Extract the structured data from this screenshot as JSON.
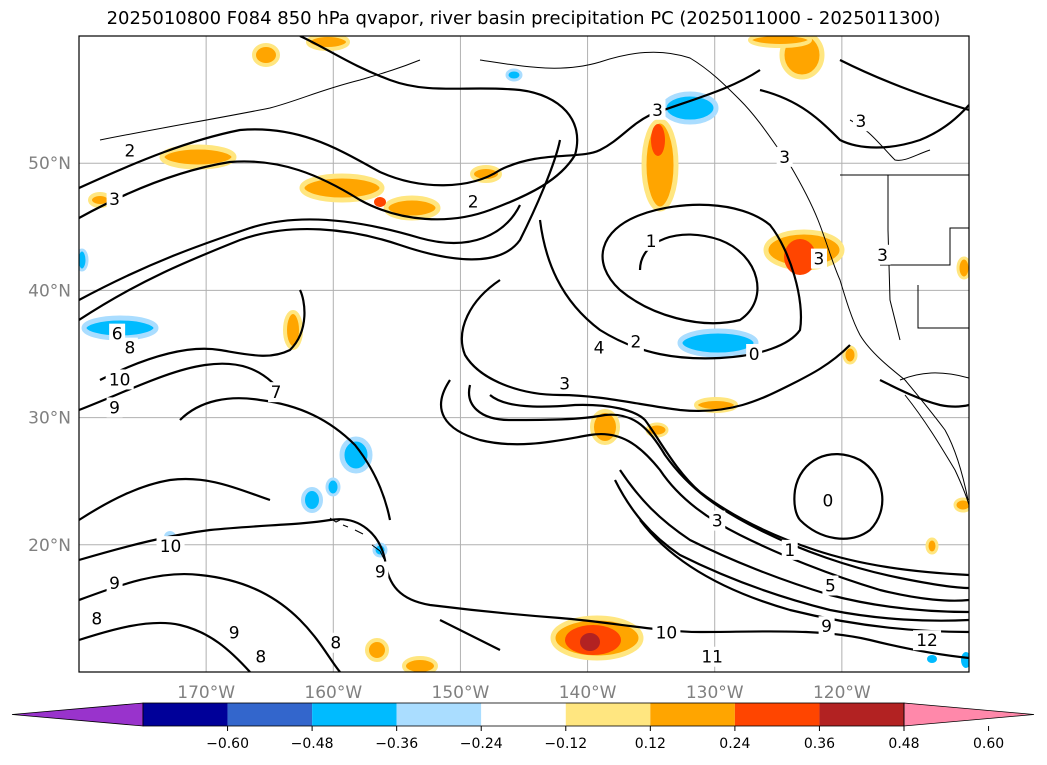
{
  "title": "2025010800 F084 850 hPa qvapor, river basin precipitation PC (2025011000 - 2025011300)",
  "map": {
    "projection": "lat-lon",
    "lon_range": [
      -180,
      -110
    ],
    "lat_range": [
      10,
      60
    ],
    "gridlines": true,
    "lat_ticks": [
      {
        "label": "50°N",
        "lat": 50
      },
      {
        "label": "40°N",
        "lat": 40
      },
      {
        "label": "30°N",
        "lat": 30
      },
      {
        "label": "20°N",
        "lat": 20
      }
    ],
    "lon_ticks": [
      {
        "label": "170°W",
        "lon": -170
      },
      {
        "label": "160°W",
        "lon": -160
      },
      {
        "label": "150°W",
        "lon": -150
      },
      {
        "label": "140°W",
        "lon": -140
      },
      {
        "label": "130°W",
        "lon": -130
      },
      {
        "label": "120°W",
        "lon": -120
      }
    ],
    "contour_labels": [
      {
        "text": "2",
        "lon": -176,
        "lat": 51
      },
      {
        "text": "3",
        "lon": -177.2,
        "lat": 47.2
      },
      {
        "text": "2",
        "lon": -149,
        "lat": 47
      },
      {
        "text": "3",
        "lon": -134.5,
        "lat": 54.2
      },
      {
        "text": "3",
        "lon": -118.5,
        "lat": 53.3
      },
      {
        "text": "3",
        "lon": -124.5,
        "lat": 50.5
      },
      {
        "text": "1",
        "lon": -135,
        "lat": 43.9
      },
      {
        "text": "3",
        "lon": -121.8,
        "lat": 42.5
      },
      {
        "text": "3",
        "lon": -116.8,
        "lat": 42.8
      },
      {
        "text": "6",
        "lon": -177,
        "lat": 36.6
      },
      {
        "text": "8",
        "lon": -176,
        "lat": 35.5
      },
      {
        "text": "10",
        "lon": -176.8,
        "lat": 33
      },
      {
        "text": "9",
        "lon": -177.2,
        "lat": 30.8
      },
      {
        "text": "7",
        "lon": -164.5,
        "lat": 32
      },
      {
        "text": "4",
        "lon": -139.1,
        "lat": 35.5
      },
      {
        "text": "2",
        "lon": -136.2,
        "lat": 36
      },
      {
        "text": "0",
        "lon": -126.9,
        "lat": 35
      },
      {
        "text": "3",
        "lon": -141.8,
        "lat": 32.7
      },
      {
        "text": "3",
        "lon": -129.8,
        "lat": 21.9
      },
      {
        "text": "0",
        "lon": -121.1,
        "lat": 23.5
      },
      {
        "text": "1",
        "lon": -124.1,
        "lat": 19.6
      },
      {
        "text": "5",
        "lon": -120.9,
        "lat": 16.8
      },
      {
        "text": "10",
        "lon": -172.8,
        "lat": 19.9
      },
      {
        "text": "9",
        "lon": -177.2,
        "lat": 17
      },
      {
        "text": "9",
        "lon": -156.3,
        "lat": 17.9
      },
      {
        "text": "8",
        "lon": -178.6,
        "lat": 14.2
      },
      {
        "text": "9",
        "lon": -167.8,
        "lat": 13.1
      },
      {
        "text": "8",
        "lon": -165.7,
        "lat": 11.2
      },
      {
        "text": "8",
        "lon": -159.8,
        "lat": 12.3
      },
      {
        "text": "10",
        "lon": -133.8,
        "lat": 13.1
      },
      {
        "text": "9",
        "lon": -121.2,
        "lat": 13.6
      },
      {
        "text": "11",
        "lon": -130.2,
        "lat": 11.2
      },
      {
        "text": "12",
        "lon": -113.3,
        "lat": 12.5
      }
    ]
  },
  "colorbar": {
    "colors": [
      "#9933cc",
      "#000099",
      "#3366cc",
      "#00bbff",
      "#aaddff",
      "#ffffff",
      "#ffe680",
      "#ffa500",
      "#ff4500",
      "#b22222",
      "#ff88aa"
    ],
    "tick_labels": [
      "−0.60",
      "−0.48",
      "−0.36",
      "−0.24",
      "−0.12",
      "0.12",
      "0.24",
      "0.36",
      "0.48",
      "0.60"
    ]
  }
}
